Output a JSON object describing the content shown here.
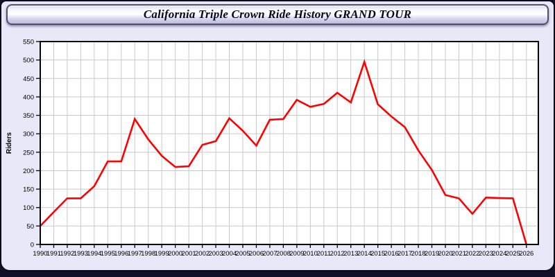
{
  "window": {
    "title": "California Triple Crown Ride History GRAND TOUR"
  },
  "colors": {
    "page_background": "#101028",
    "panel_background": "#e8e8f8",
    "plot_background": "#ffffff",
    "grid": "#c9c9c9",
    "axis": "#000000",
    "line": "#ff0000"
  },
  "chart_data": {
    "type": "line",
    "title": "California Triple Crown Ride History GRAND TOUR",
    "xlabel": "",
    "ylabel": "Riders",
    "x": [
      1990,
      1991,
      1992,
      1993,
      1994,
      1995,
      1996,
      1997,
      1998,
      1999,
      2000,
      2001,
      2002,
      2003,
      2004,
      2005,
      2006,
      2007,
      2008,
      2009,
      2010,
      2011,
      2012,
      2013,
      2014,
      2015,
      2016,
      2017,
      2018,
      2019,
      2020,
      2021,
      2022,
      2023,
      2024,
      2025,
      2026
    ],
    "series": [
      {
        "name": "Riders",
        "color": "#ff0000",
        "values": [
          50,
          88,
          125,
          125,
          158,
          225,
          225,
          340,
          285,
          240,
          210,
          212,
          270,
          280,
          342,
          308,
          268,
          338,
          340,
          392,
          373,
          381,
          411,
          385,
          495,
          380,
          347,
          318,
          255,
          202,
          134,
          125,
          83,
          127,
          126,
          125,
          0
        ]
      }
    ],
    "ylim": [
      0,
      550
    ],
    "ytick_step": 50,
    "grid": true,
    "legend": "none"
  }
}
